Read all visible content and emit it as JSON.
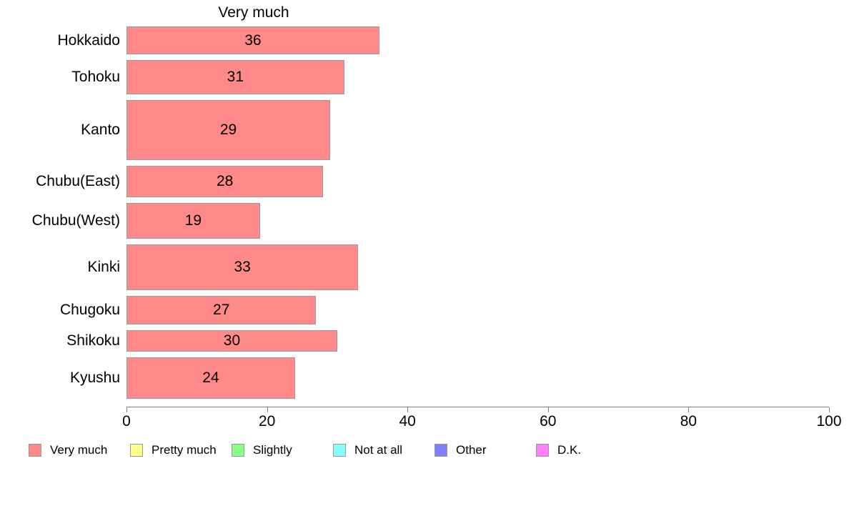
{
  "chart_data": {
    "type": "bar",
    "orientation": "horizontal",
    "title": "Very much",
    "categories": [
      "Hokkaido",
      "Tohoku",
      "Kanto",
      "Chubu(East)",
      "Chubu(West)",
      "Kinki",
      "Chugoku",
      "Shikoku",
      "Kyushu"
    ],
    "values": [
      36,
      31,
      29,
      28,
      19,
      33,
      27,
      30,
      24
    ],
    "bar_thickness_px": [
      39,
      48,
      84,
      44,
      50,
      64,
      40,
      30,
      58
    ],
    "value_labels_shown": true,
    "xlim": [
      0,
      100
    ],
    "x_ticks": [
      0,
      20,
      40,
      60,
      80,
      100
    ],
    "grid": false,
    "bar_color": "#FF8888",
    "bar_border_color": "#9C9C9C",
    "legend_position": "bottom",
    "legend": [
      {
        "label": "Very much",
        "color": "#FF8888"
      },
      {
        "label": "Pretty much",
        "color": "#FFFF88"
      },
      {
        "label": "Slightly",
        "color": "#88FF88"
      },
      {
        "label": "Not at all",
        "color": "#88FFFF"
      },
      {
        "label": "Other",
        "color": "#7F7FFF"
      },
      {
        "label": "D.K.",
        "color": "#FF80FF"
      }
    ]
  }
}
